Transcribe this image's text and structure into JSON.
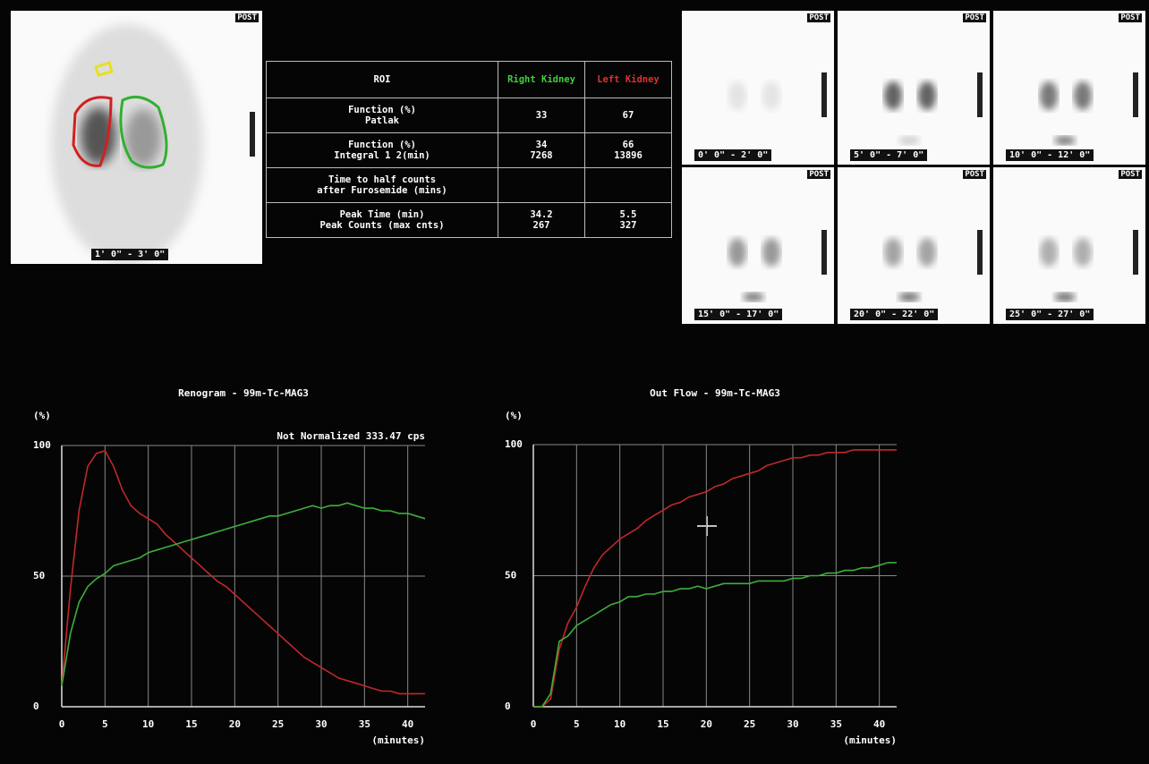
{
  "images": {
    "main": {
      "orientation": "POST",
      "time": "1' 0\" - 3' 0\""
    },
    "frames": [
      {
        "orientation": "POST",
        "time": "0' 0\" - 2' 0\""
      },
      {
        "orientation": "POST",
        "time": "5' 0\" - 7' 0\""
      },
      {
        "orientation": "POST",
        "time": "10' 0\" - 12' 0\""
      },
      {
        "orientation": "POST",
        "time": "15' 0\" - 17' 0\""
      },
      {
        "orientation": "POST",
        "time": "20' 0\" - 22' 0\""
      },
      {
        "orientation": "POST",
        "time": "25' 0\" - 27' 0\""
      }
    ]
  },
  "table": {
    "header": [
      "ROI",
      "Right Kidney",
      "Left Kidney"
    ],
    "rows": [
      [
        [
          "Function (%)",
          "Patlak"
        ],
        [
          "33"
        ],
        [
          "67"
        ]
      ],
      [
        [
          "Function (%)",
          "Integral 1 2(min)"
        ],
        [
          "34",
          "7268"
        ],
        [
          "66",
          "13896"
        ]
      ],
      [
        [
          "Time to half counts",
          "after Furosemide (mins)"
        ],
        [],
        []
      ],
      [
        [
          "Peak Time (min)",
          "Peak Counts (max cnts)"
        ],
        [
          "34.2",
          "267"
        ],
        [
          "5.5",
          "327"
        ]
      ]
    ]
  },
  "chart_data": [
    {
      "type": "line",
      "title": "Renogram - 99m-Tc-MAG3",
      "subtitle": "Not Normalized 333.47 cps",
      "y_label": "(%)",
      "x_label": "(minutes)",
      "x": [
        0,
        1,
        2,
        3,
        4,
        5,
        6,
        7,
        8,
        9,
        10,
        11,
        12,
        13,
        14,
        15,
        16,
        17,
        18,
        19,
        20,
        21,
        22,
        23,
        24,
        25,
        26,
        27,
        28,
        29,
        30,
        31,
        32,
        33,
        34,
        35,
        36,
        37,
        38,
        39,
        40,
        41,
        42
      ],
      "series": [
        {
          "color": "#c0282a",
          "values": [
            8,
            45,
            75,
            92,
            97,
            98,
            92,
            83,
            77,
            74,
            72,
            70,
            66,
            63,
            60,
            57,
            54,
            51,
            48,
            46,
            43,
            40,
            37,
            34,
            31,
            28,
            25,
            22,
            19,
            17,
            15,
            13,
            11,
            10,
            9,
            8,
            7,
            6,
            6,
            5,
            5,
            5,
            5
          ]
        },
        {
          "color": "#3fae3a",
          "values": [
            8,
            28,
            40,
            46,
            49,
            51,
            54,
            55,
            56,
            57,
            59,
            60,
            61,
            62,
            63,
            64,
            65,
            66,
            67,
            68,
            69,
            70,
            71,
            72,
            73,
            73,
            74,
            75,
            76,
            77,
            76,
            77,
            77,
            78,
            77,
            76,
            76,
            75,
            75,
            74,
            74,
            73,
            72
          ]
        }
      ],
      "xlim": [
        0,
        42
      ],
      "xticks": [
        0,
        5,
        10,
        15,
        20,
        25,
        30,
        35,
        40
      ],
      "ylim": [
        0,
        100
      ],
      "yticks": [
        0,
        50,
        100
      ],
      "grid": true
    },
    {
      "type": "line",
      "title": "Out Flow - 99m-Tc-MAG3",
      "y_label": "(%)",
      "x_label": "(minutes)",
      "x": [
        0,
        1,
        2,
        3,
        4,
        5,
        6,
        7,
        8,
        9,
        10,
        11,
        12,
        13,
        14,
        15,
        16,
        17,
        18,
        19,
        20,
        21,
        22,
        23,
        24,
        25,
        26,
        27,
        28,
        29,
        30,
        31,
        32,
        33,
        34,
        35,
        36,
        37,
        38,
        39,
        40,
        41,
        42
      ],
      "series": [
        {
          "color": "#c0282a",
          "values": [
            0,
            0,
            3,
            22,
            32,
            38,
            46,
            53,
            58,
            61,
            64,
            66,
            68,
            71,
            73,
            75,
            77,
            78,
            80,
            81,
            82,
            84,
            85,
            87,
            88,
            89,
            90,
            92,
            93,
            94,
            95,
            95,
            96,
            96,
            97,
            97,
            97,
            98,
            98,
            98,
            98,
            98,
            98
          ]
        },
        {
          "color": "#3fae3a",
          "values": [
            0,
            0,
            5,
            25,
            27,
            31,
            33,
            35,
            37,
            39,
            40,
            42,
            42,
            43,
            43,
            44,
            44,
            45,
            45,
            46,
            45,
            46,
            47,
            47,
            47,
            47,
            48,
            48,
            48,
            48,
            49,
            49,
            50,
            50,
            51,
            51,
            52,
            52,
            53,
            53,
            54,
            55,
            55
          ]
        }
      ],
      "xlim": [
        0,
        42
      ],
      "xticks": [
        0,
        5,
        10,
        15,
        20,
        25,
        30,
        35,
        40
      ],
      "ylim": [
        0,
        100
      ],
      "yticks": [
        0,
        50,
        100
      ],
      "grid": true
    }
  ]
}
